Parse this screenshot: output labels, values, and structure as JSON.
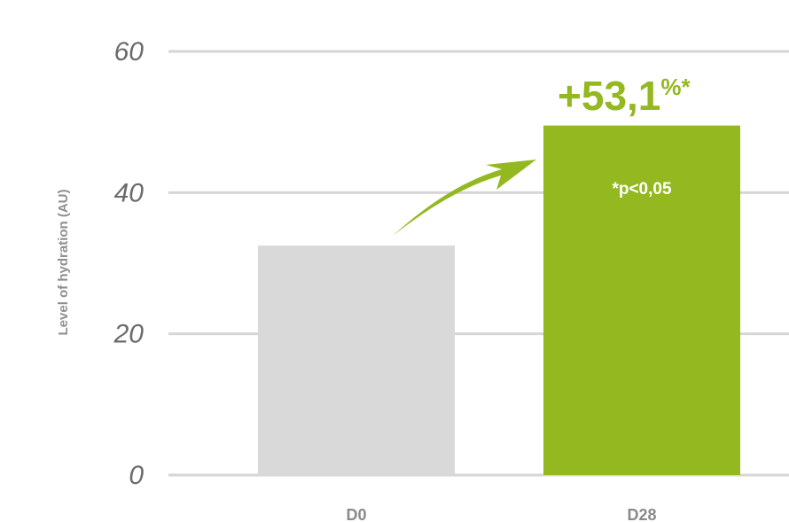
{
  "chart_data": {
    "type": "bar",
    "ylabel": "Level of hydration (AU)",
    "xlabel": "",
    "categories": [
      "D0",
      "D28"
    ],
    "values": [
      32.5,
      49.5
    ],
    "ylim": [
      0,
      60
    ],
    "yticks": [
      0,
      20,
      40,
      60
    ],
    "grid": true,
    "colors": [
      "#d9d9d9",
      "#94b820"
    ],
    "annotations": {
      "increase_value": "+53,1",
      "increase_unit": "%*",
      "significance": "*p<0,05"
    }
  }
}
